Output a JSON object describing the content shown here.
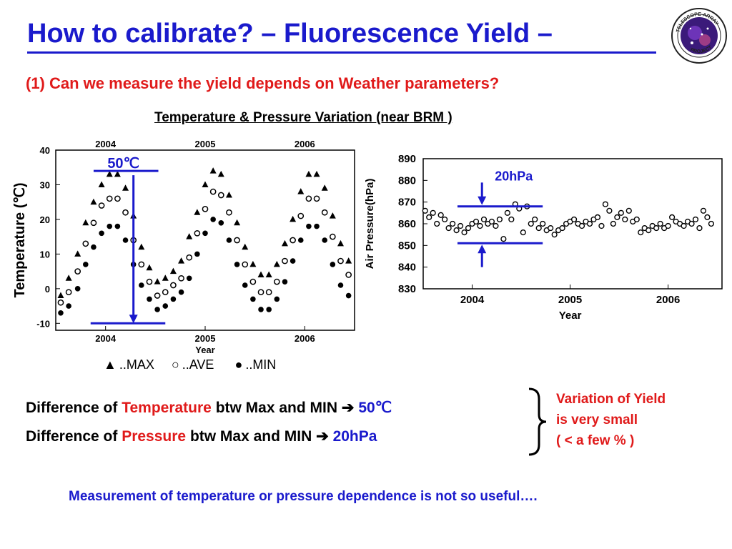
{
  "slide": {
    "title": "How to calibrate? – Fluorescence Yield –",
    "subtitle": "(1) Can we measure the yield depends on Weather parameters?",
    "chart_heading": "Temperature & Pressure  Variation (near BRM )",
    "logo_text": "TELESCOPE ARRAY PROJECT",
    "legend": {
      "max_symbol": "▲",
      "max_label": "..MAX",
      "ave_symbol": "○",
      "ave_label": "..AVE",
      "min_symbol": "●",
      "min_label": "..MIN"
    },
    "diff_temperature": {
      "prefix": "Difference of ",
      "keyword": "Temperature",
      "middle": " btw Max and MIN ",
      "arrow": "➔",
      "value": "50℃"
    },
    "diff_pressure": {
      "prefix": "Difference of ",
      "keyword": "Pressure",
      "middle": " btw Max and MIN ",
      "arrow": "➔",
      "value": "20hPa"
    },
    "conclusion": {
      "line1": "Variation of Yield",
      "line2": "is very small",
      "line3": "( < a few % )"
    },
    "footer": "Measurement of temperature or pressure dependence is not so useful…."
  },
  "colors": {
    "title": "#1a1acc",
    "accent_red": "#e01a1a",
    "annotation_blue": "#1a1acc"
  },
  "chart_data": [
    {
      "type": "scatter",
      "title": "",
      "ylabel": "Temperature (℃)",
      "xlabel": "Year",
      "ylim": [
        -12,
        40
      ],
      "yticks": [
        "40",
        "30",
        "20",
        "10",
        "0",
        "-10"
      ],
      "xticks": [
        "2004",
        "2005",
        "2006"
      ],
      "top_ticks": [
        "2004",
        "2005",
        "2006"
      ],
      "annotation": "50℃",
      "series": [
        {
          "marker": "triangle-filled",
          "values": [
            [
              2003.55,
              -2
            ],
            [
              2003.63,
              3
            ],
            [
              2003.72,
              10
            ],
            [
              2003.8,
              19
            ],
            [
              2003.88,
              25
            ],
            [
              2003.96,
              30
            ],
            [
              2004.04,
              33
            ],
            [
              2004.12,
              33
            ],
            [
              2004.2,
              29
            ],
            [
              2004.28,
              21
            ],
            [
              2004.36,
              12
            ],
            [
              2004.44,
              6
            ],
            [
              2004.52,
              2
            ],
            [
              2004.6,
              3
            ],
            [
              2004.68,
              5
            ],
            [
              2004.76,
              8
            ],
            [
              2004.84,
              15
            ],
            [
              2004.92,
              22
            ],
            [
              2005.0,
              30
            ],
            [
              2005.08,
              34
            ],
            [
              2005.16,
              33
            ],
            [
              2005.24,
              27
            ],
            [
              2005.32,
              19
            ],
            [
              2005.4,
              12
            ],
            [
              2005.48,
              7
            ],
            [
              2005.56,
              4
            ],
            [
              2005.64,
              4
            ],
            [
              2005.72,
              7
            ],
            [
              2005.8,
              13
            ],
            [
              2005.88,
              20
            ],
            [
              2005.96,
              28
            ],
            [
              2006.04,
              33
            ],
            [
              2006.12,
              33
            ],
            [
              2006.2,
              29
            ],
            [
              2006.28,
              21
            ],
            [
              2006.36,
              13
            ],
            [
              2006.44,
              8
            ]
          ]
        },
        {
          "marker": "circle-open",
          "values": [
            [
              2003.55,
              -4
            ],
            [
              2003.63,
              -1
            ],
            [
              2003.72,
              5
            ],
            [
              2003.8,
              13
            ],
            [
              2003.88,
              19
            ],
            [
              2003.96,
              24
            ],
            [
              2004.04,
              26
            ],
            [
              2004.12,
              26
            ],
            [
              2004.2,
              22
            ],
            [
              2004.28,
              14
            ],
            [
              2004.36,
              7
            ],
            [
              2004.44,
              2
            ],
            [
              2004.52,
              -2
            ],
            [
              2004.6,
              -1
            ],
            [
              2004.68,
              1
            ],
            [
              2004.76,
              3
            ],
            [
              2004.84,
              9
            ],
            [
              2004.92,
              16
            ],
            [
              2005.0,
              23
            ],
            [
              2005.08,
              28
            ],
            [
              2005.16,
              27
            ],
            [
              2005.24,
              22
            ],
            [
              2005.32,
              14
            ],
            [
              2005.4,
              7
            ],
            [
              2005.48,
              2
            ],
            [
              2005.56,
              -1
            ],
            [
              2005.64,
              -1
            ],
            [
              2005.72,
              2
            ],
            [
              2005.8,
              8
            ],
            [
              2005.88,
              14
            ],
            [
              2005.96,
              21
            ],
            [
              2006.04,
              26
            ],
            [
              2006.12,
              26
            ],
            [
              2006.2,
              22
            ],
            [
              2006.28,
              15
            ],
            [
              2006.36,
              8
            ],
            [
              2006.44,
              4
            ]
          ]
        },
        {
          "marker": "circle-filled",
          "values": [
            [
              2003.55,
              -7
            ],
            [
              2003.63,
              -5
            ],
            [
              2003.72,
              0
            ],
            [
              2003.8,
              7
            ],
            [
              2003.88,
              12
            ],
            [
              2003.96,
              16
            ],
            [
              2004.04,
              18
            ],
            [
              2004.12,
              18
            ],
            [
              2004.2,
              14
            ],
            [
              2004.28,
              7
            ],
            [
              2004.36,
              1
            ],
            [
              2004.44,
              -3
            ],
            [
              2004.52,
              -6
            ],
            [
              2004.6,
              -5
            ],
            [
              2004.68,
              -3
            ],
            [
              2004.76,
              -1
            ],
            [
              2004.84,
              3
            ],
            [
              2004.92,
              10
            ],
            [
              2005.0,
              16
            ],
            [
              2005.08,
              20
            ],
            [
              2005.16,
              19
            ],
            [
              2005.24,
              14
            ],
            [
              2005.32,
              7
            ],
            [
              2005.4,
              1
            ],
            [
              2005.48,
              -3
            ],
            [
              2005.56,
              -6
            ],
            [
              2005.64,
              -6
            ],
            [
              2005.72,
              -3
            ],
            [
              2005.8,
              2
            ],
            [
              2005.88,
              8
            ],
            [
              2005.96,
              14
            ],
            [
              2006.04,
              18
            ],
            [
              2006.12,
              18
            ],
            [
              2006.2,
              14
            ],
            [
              2006.28,
              7
            ],
            [
              2006.36,
              1
            ],
            [
              2006.44,
              -2
            ]
          ]
        }
      ]
    },
    {
      "type": "scatter",
      "title": "",
      "ylabel": "Air Pressure(hPa)",
      "xlabel": "Year",
      "ylim": [
        830,
        890
      ],
      "yticks": [
        "890",
        "880",
        "870",
        "860",
        "850",
        "840",
        "830"
      ],
      "xticks": [
        "2004",
        "2005",
        "2006"
      ],
      "annotation": "20hPa",
      "series": [
        {
          "marker": "circle-open",
          "values": [
            [
              2003.52,
              866
            ],
            [
              2003.56,
              863
            ],
            [
              2003.6,
              865
            ],
            [
              2003.64,
              860
            ],
            [
              2003.68,
              864
            ],
            [
              2003.72,
              862
            ],
            [
              2003.76,
              858
            ],
            [
              2003.8,
              860
            ],
            [
              2003.84,
              857
            ],
            [
              2003.88,
              859
            ],
            [
              2003.92,
              856
            ],
            [
              2003.96,
              858
            ],
            [
              2004.0,
              860
            ],
            [
              2004.04,
              861
            ],
            [
              2004.08,
              859
            ],
            [
              2004.12,
              862
            ],
            [
              2004.16,
              860
            ],
            [
              2004.2,
              861
            ],
            [
              2004.24,
              859
            ],
            [
              2004.28,
              862
            ],
            [
              2004.32,
              853
            ],
            [
              2004.36,
              865
            ],
            [
              2004.4,
              862
            ],
            [
              2004.44,
              869
            ],
            [
              2004.48,
              867
            ],
            [
              2004.52,
              856
            ],
            [
              2004.56,
              868
            ],
            [
              2004.6,
              860
            ],
            [
              2004.64,
              862
            ],
            [
              2004.68,
              858
            ],
            [
              2004.72,
              860
            ],
            [
              2004.76,
              857
            ],
            [
              2004.8,
              858
            ],
            [
              2004.84,
              855
            ],
            [
              2004.88,
              857
            ],
            [
              2004.92,
              858
            ],
            [
              2004.96,
              860
            ],
            [
              2005.0,
              861
            ],
            [
              2005.04,
              862
            ],
            [
              2005.08,
              860
            ],
            [
              2005.12,
              859
            ],
            [
              2005.16,
              861
            ],
            [
              2005.2,
              860
            ],
            [
              2005.24,
              862
            ],
            [
              2005.28,
              863
            ],
            [
              2005.32,
              859
            ],
            [
              2005.36,
              869
            ],
            [
              2005.4,
              866
            ],
            [
              2005.44,
              860
            ],
            [
              2005.48,
              863
            ],
            [
              2005.52,
              865
            ],
            [
              2005.56,
              862
            ],
            [
              2005.6,
              866
            ],
            [
              2005.64,
              861
            ],
            [
              2005.68,
              862
            ],
            [
              2005.72,
              856
            ],
            [
              2005.76,
              858
            ],
            [
              2005.8,
              857
            ],
            [
              2005.84,
              859
            ],
            [
              2005.88,
              858
            ],
            [
              2005.92,
              860
            ],
            [
              2005.96,
              858
            ],
            [
              2006.0,
              859
            ],
            [
              2006.04,
              863
            ],
            [
              2006.08,
              861
            ],
            [
              2006.12,
              860
            ],
            [
              2006.16,
              859
            ],
            [
              2006.2,
              861
            ],
            [
              2006.24,
              860
            ],
            [
              2006.28,
              862
            ],
            [
              2006.32,
              858
            ],
            [
              2006.36,
              866
            ],
            [
              2006.4,
              863
            ],
            [
              2006.44,
              860
            ]
          ]
        }
      ]
    }
  ]
}
